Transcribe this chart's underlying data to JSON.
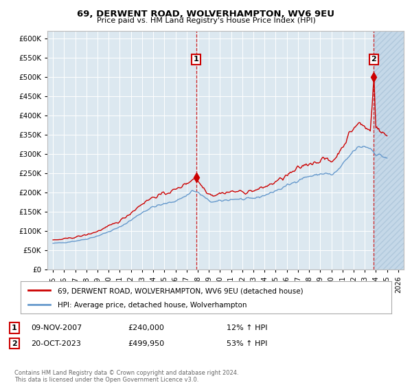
{
  "title1": "69, DERWENT ROAD, WOLVERHAMPTON, WV6 9EU",
  "title2": "Price paid vs. HM Land Registry's House Price Index (HPI)",
  "ylim": [
    0,
    620000
  ],
  "yticks": [
    0,
    50000,
    100000,
    150000,
    200000,
    250000,
    300000,
    350000,
    400000,
    450000,
    500000,
    550000,
    600000
  ],
  "xmin_year": 1994.5,
  "xmax_year": 2026.5,
  "xticks": [
    1995,
    1996,
    1997,
    1998,
    1999,
    2000,
    2001,
    2002,
    2003,
    2004,
    2005,
    2006,
    2007,
    2008,
    2009,
    2010,
    2011,
    2012,
    2013,
    2014,
    2015,
    2016,
    2017,
    2018,
    2019,
    2020,
    2021,
    2022,
    2023,
    2024,
    2025,
    2026
  ],
  "sale1_x": 2007.86,
  "sale1_y": 240000,
  "sale2_x": 2023.8,
  "sale2_y": 499950,
  "annotation1_date": "09-NOV-2007",
  "annotation1_price": "£240,000",
  "annotation1_hpi": "12% ↑ HPI",
  "annotation2_date": "20-OCT-2023",
  "annotation2_price": "£499,950",
  "annotation2_hpi": "53% ↑ HPI",
  "legend_line1": "69, DERWENT ROAD, WOLVERHAMPTON, WV6 9EU (detached house)",
  "legend_line2": "HPI: Average price, detached house, Wolverhampton",
  "footer": "Contains HM Land Registry data © Crown copyright and database right 2024.\nThis data is licensed under the Open Government Licence v3.0.",
  "line_color_red": "#cc0000",
  "line_color_blue": "#6699cc",
  "background_plot": "#dce8f0",
  "grid_color": "#ffffff",
  "vline_color": "#cc0000",
  "hatch_color": "#c5d8e8"
}
